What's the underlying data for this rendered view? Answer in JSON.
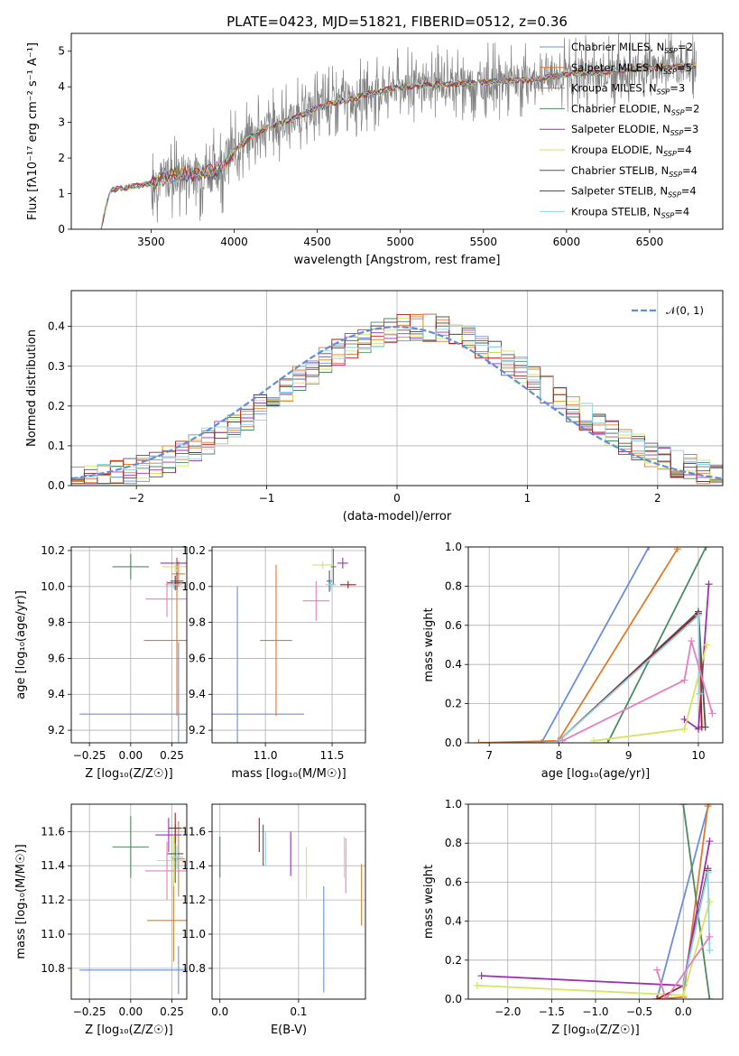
{
  "title": "PLATE=0423, MJD=51821, FIBERID=0512, z=0.36",
  "colors": {
    "Chabrier MILES": "#6a8fd9",
    "Salpeter MILES": "#e07b2a",
    "Kroupa MILES": "#e07b2a",
    "Chabrier ELODIE": "#4f8a5f",
    "Salpeter ELODIE": "#9b30b0",
    "Kroupa ELODIE": "#d2e660",
    "Chabrier STELIB": "#555555",
    "Salpeter STELIB": "#b01818",
    "Kroupa STELIB": "#8fd3e6",
    "Extra pink": "#e57fbd",
    "data": "#808080",
    "gaussian": "#5e8fd9"
  },
  "chart_data": [
    {
      "id": "spectrum",
      "type": "line",
      "title": "PLATE=0423, MJD=51821, FIBERID=0512, z=0.36",
      "xlabel": "wavelength [Angstrom, rest frame]",
      "ylabel": "Flux [f_λ 10^-17 erg cm^-2 s^-1 A^-1]",
      "xlim": [
        3020,
        6940
      ],
      "ylim": [
        0,
        5.5
      ],
      "xticks": [
        3500,
        4000,
        4500,
        5000,
        5500,
        6000,
        6500
      ],
      "yticks": [
        0,
        1,
        2,
        3,
        4,
        5
      ],
      "legend_position": "top-right",
      "legend": [
        {
          "label": "Chabrier MILES, N",
          "sub": "SSP",
          "tail": "=2",
          "color": "#6a8fd9"
        },
        {
          "label": "Salpeter MILES, N",
          "sub": "SSP",
          "tail": "=5",
          "color": "#e07b2a"
        },
        {
          "label": "Kroupa MILES, N",
          "sub": "SSP",
          "tail": "=3",
          "color": "#e07b2a"
        },
        {
          "label": "Chabrier ELODIE, N",
          "sub": "SSP",
          "tail": "=2",
          "color": "#4f8a5f"
        },
        {
          "label": "Salpeter ELODIE, N",
          "sub": "SSP",
          "tail": "=3",
          "color": "#9b30b0"
        },
        {
          "label": "Kroupa ELODIE, N",
          "sub": "SSP",
          "tail": "=4",
          "color": "#d2e660"
        },
        {
          "label": "Chabrier STELIB, N",
          "sub": "SSP",
          "tail": "=4",
          "color": "#555555"
        },
        {
          "label": "Salpeter STELIB, N",
          "sub": "SSP",
          "tail": "=4",
          "color": "#b01818"
        },
        {
          "label": "Kroupa STELIB, N",
          "sub": "SSP",
          "tail": "=4",
          "color": "#8fd3e6"
        }
      ],
      "model_curve": {
        "x": [
          3200,
          3250,
          3300,
          3400,
          3500,
          3600,
          3700,
          3800,
          3900,
          4000,
          4100,
          4200,
          4300,
          4400,
          4500,
          4600,
          4700,
          4800,
          4900,
          5000,
          5200,
          5400,
          5600,
          5800,
          6000,
          6200,
          6400,
          6600,
          6780
        ],
        "y": [
          0.05,
          1.05,
          1.15,
          1.2,
          1.3,
          1.45,
          1.55,
          1.6,
          1.65,
          2.2,
          2.6,
          2.85,
          3.0,
          3.2,
          3.4,
          3.55,
          3.65,
          3.8,
          3.9,
          4.0,
          4.05,
          4.1,
          4.15,
          4.2,
          4.35,
          4.4,
          4.5,
          4.55,
          4.6
        ]
      },
      "noise_start": 3500
    },
    {
      "id": "residuals",
      "type": "line",
      "xlabel": "(data-model)/error",
      "ylabel": "Normed distribution",
      "xlim": [
        -2.5,
        2.5
      ],
      "ylim": [
        0,
        0.49
      ],
      "xticks": [
        -2,
        -1,
        0,
        1,
        2
      ],
      "yticks": [
        0.0,
        0.1,
        0.2,
        0.3,
        0.4
      ],
      "legend_position": "top-right",
      "legend": [
        {
          "label": "𝒩(0, 1)",
          "color": "#5e8fd9"
        }
      ],
      "bin_width": 0.1
    },
    {
      "id": "age-vs-Z",
      "type": "scatter",
      "xlabel": "Z [log₁₀(Z/Z☉)]",
      "ylabel": "age  [log₁₀(age/yr)]",
      "xlim": [
        -0.36,
        0.34
      ],
      "ylim": [
        9.13,
        10.22
      ],
      "xticks": [
        -0.25,
        0.0,
        0.25
      ],
      "xticklabels": [
        "−0.25",
        "0.00",
        "0.25"
      ],
      "yticks": [
        9.2,
        9.4,
        9.6,
        9.8,
        10.0,
        10.2
      ],
      "points": [
        {
          "model": "Chabrier MILES",
          "x": 0.29,
          "y": 9.29,
          "xerr": 0.6,
          "yerr": 0.4
        },
        {
          "model": "Salpeter MILES",
          "x": 0.28,
          "y": 9.7,
          "xerr": 0.2,
          "yerr": 0.42
        },
        {
          "model": "Kroupa MILES",
          "x": 0.29,
          "y": 10.07,
          "xerr": 0.04,
          "yerr": 0.07
        },
        {
          "model": "Chabrier ELODIE",
          "x": 0.0,
          "y": 10.11,
          "xerr": 0.11,
          "yerr": 0.07
        },
        {
          "model": "Salpeter ELODIE",
          "x": 0.28,
          "y": 10.13,
          "xerr": 0.1,
          "yerr": 0.03
        },
        {
          "model": "Kroupa ELODIE",
          "x": 0.27,
          "y": 10.11,
          "xerr": 0.08,
          "yerr": 0.03
        },
        {
          "model": "Chabrier STELIB",
          "x": 0.28,
          "y": 10.03,
          "xerr": 0.04,
          "yerr": 0.05
        },
        {
          "model": "Salpeter STELIB",
          "x": 0.27,
          "y": 10.02,
          "xerr": 0.05,
          "yerr": 0.04
        },
        {
          "model": "Kroupa STELIB",
          "x": 0.26,
          "y": 10.01,
          "xerr": 0.05,
          "yerr": 0.02
        },
        {
          "model": "Extra pink",
          "x": 0.22,
          "y": 9.93,
          "xerr": 0.13,
          "yerr": 0.1
        }
      ]
    },
    {
      "id": "age-vs-mass",
      "type": "scatter",
      "xlabel": "mass [log₁₀(M/M☉)]",
      "ylabel": "",
      "xlim": [
        10.6,
        11.75
      ],
      "ylim": [
        9.13,
        10.22
      ],
      "xticks": [
        11.0,
        11.5
      ],
      "xticklabels": [
        "11.0",
        "11.5"
      ],
      "yticks": [
        9.2,
        9.4,
        9.6,
        9.8,
        10.0,
        10.2
      ],
      "points": [
        {
          "model": "Chabrier MILES",
          "x": 10.79,
          "y": 9.29,
          "xerr": 0.5,
          "yerr": 0.71
        },
        {
          "model": "Salpeter MILES",
          "x": 11.08,
          "y": 9.7,
          "xerr": 0.12,
          "yerr": 0.42
        },
        {
          "model": "Chabrier ELODIE",
          "x": 11.51,
          "y": 10.11,
          "xerr": 0.02,
          "yerr": 0.1
        },
        {
          "model": "Salpeter ELODIE",
          "x": 11.58,
          "y": 10.13,
          "xerr": 0.04,
          "yerr": 0.03
        },
        {
          "model": "Kroupa ELODIE",
          "x": 11.43,
          "y": 10.12,
          "xerr": 0.08,
          "yerr": 0.02
        },
        {
          "model": "Chabrier STELIB",
          "x": 11.48,
          "y": 10.03,
          "xerr": 0.02,
          "yerr": 0.06
        },
        {
          "model": "Salpeter STELIB",
          "x": 11.62,
          "y": 10.01,
          "xerr": 0.06,
          "yerr": 0.02
        },
        {
          "model": "Kroupa STELIB",
          "x": 11.49,
          "y": 10.01,
          "xerr": 0.04,
          "yerr": 0.03
        },
        {
          "model": "Extra pink",
          "x": 11.38,
          "y": 9.92,
          "xerr": 0.1,
          "yerr": 0.11
        }
      ]
    },
    {
      "id": "massweight-vs-age",
      "type": "line",
      "xlabel": "age  [log₁₀(age/yr)]",
      "ylabel": "mass weight",
      "xlim": [
        6.7,
        10.35
      ],
      "ylim": [
        0,
        1.0
      ],
      "xticks": [
        7,
        8,
        9,
        10
      ],
      "yticks": [
        0.0,
        0.2,
        0.4,
        0.6,
        0.8,
        1.0
      ],
      "series": [
        {
          "model": "Chabrier MILES",
          "x": [
            7.75,
            9.29
          ],
          "y": [
            0.0,
            1.0
          ]
        },
        {
          "model": "Salpeter MILES",
          "x": [
            6.85,
            7.99,
            9.7
          ],
          "y": [
            0.0,
            0.01,
            0.99
          ]
        },
        {
          "model": "Chabrier ELODIE",
          "x": [
            8.7,
            10.11
          ],
          "y": [
            0.0,
            1.0
          ]
        },
        {
          "model": "Salpeter ELODIE",
          "x": [
            9.8,
            10.0,
            10.15
          ],
          "y": [
            0.12,
            0.07,
            0.81
          ]
        },
        {
          "model": "Kroupa ELODIE",
          "x": [
            8.5,
            9.8,
            10.12
          ],
          "y": [
            0.01,
            0.07,
            0.5
          ]
        },
        {
          "model": "Chabrier STELIB",
          "x": [
            8.0,
            10.0,
            10.1
          ],
          "y": [
            0.01,
            0.67,
            0.08
          ]
        },
        {
          "model": "Salpeter STELIB",
          "x": [
            8.0,
            10.0,
            10.05
          ],
          "y": [
            0.01,
            0.66,
            0.08
          ]
        },
        {
          "model": "Kroupa STELIB",
          "x": [
            8.0,
            10.0,
            10.02
          ],
          "y": [
            0.01,
            0.65,
            0.25
          ]
        },
        {
          "model": "Extra pink",
          "x": [
            8.05,
            9.8,
            9.9,
            10.2
          ],
          "y": [
            0.01,
            0.32,
            0.52,
            0.15
          ]
        }
      ]
    },
    {
      "id": "mass-vs-Z",
      "type": "scatter",
      "xlabel": "Z [log₁₀(Z/Z☉)]",
      "ylabel": "mass [log₁₀(M/M☉)]",
      "xlim": [
        -0.36,
        0.34
      ],
      "ylim": [
        10.62,
        11.76
      ],
      "xticks": [
        -0.25,
        0.0,
        0.25
      ],
      "xticklabels": [
        "−0.25",
        "0.00",
        "0.25"
      ],
      "yticks": [
        10.8,
        11.0,
        11.2,
        11.4,
        11.6
      ],
      "points": [
        {
          "model": "Chabrier MILES",
          "x": 0.29,
          "y": 10.79,
          "xerr": 0.6,
          "yerr": 0.14
        },
        {
          "model": "Salpeter MILES",
          "x": 0.26,
          "y": 11.08,
          "xerr": 0.16,
          "yerr": 0.24
        },
        {
          "model": "Kroupa MILES",
          "x": 0.29,
          "y": 11.44,
          "xerr": 0.04,
          "yerr": 0.22
        },
        {
          "model": "Chabrier ELODIE",
          "x": 0.0,
          "y": 11.51,
          "xerr": 0.11,
          "yerr": 0.18
        },
        {
          "model": "Salpeter ELODIE",
          "x": 0.23,
          "y": 11.58,
          "xerr": 0.08,
          "yerr": 0.1
        },
        {
          "model": "Kroupa ELODIE",
          "x": 0.26,
          "y": 11.43,
          "xerr": 0.1,
          "yerr": 0.15
        },
        {
          "model": "Chabrier STELIB",
          "x": 0.27,
          "y": 11.47,
          "xerr": 0.05,
          "yerr": 0.17
        },
        {
          "model": "Salpeter STELIB",
          "x": 0.27,
          "y": 11.62,
          "xerr": 0.04,
          "yerr": 0.09
        },
        {
          "model": "Kroupa STELIB",
          "x": 0.28,
          "y": 11.45,
          "xerr": 0.04,
          "yerr": 0.07
        },
        {
          "model": "Extra pink",
          "x": 0.22,
          "y": 11.37,
          "xerr": 0.13,
          "yerr": 0.17
        }
      ]
    },
    {
      "id": "mass-vs-EBV",
      "type": "scatter",
      "xlabel": "E(B-V)",
      "ylabel": "",
      "xlim": [
        -0.01,
        0.185
      ],
      "ylim": [
        10.62,
        11.76
      ],
      "xticks": [
        0.0,
        0.1
      ],
      "xticklabels": [
        "0.0",
        "0.1"
      ],
      "yticks": [
        10.8,
        11.0,
        11.2,
        11.4,
        11.6
      ],
      "points": [
        {
          "model": "Chabrier ELODIE",
          "x": 0.0,
          "y": 11.45,
          "xerr": 0,
          "yerr": 0.12
        },
        {
          "model": "Salpeter STELIB",
          "x": 0.05,
          "y": 11.58,
          "xerr": 0,
          "yerr": 0.1
        },
        {
          "model": "Chabrier STELIB",
          "x": 0.055,
          "y": 11.52,
          "xerr": 0,
          "yerr": 0.12
        },
        {
          "model": "Kroupa STELIB",
          "x": 0.058,
          "y": 11.5,
          "xerr": 0,
          "yerr": 0.1
        },
        {
          "model": "Salpeter ELODIE",
          "x": 0.09,
          "y": 11.47,
          "xerr": 0,
          "yerr": 0.13
        },
        {
          "model": "Kroupa ELODIE",
          "x": 0.11,
          "y": 11.36,
          "xerr": 0,
          "yerr": 0.15
        },
        {
          "model": "Chabrier MILES",
          "x": 0.132,
          "y": 10.97,
          "xerr": 0,
          "yerr": 0.31
        },
        {
          "model": "Kroupa ELODIE",
          "x": 0.158,
          "y": 11.45,
          "xerr": 0,
          "yerr": 0.12
        },
        {
          "model": "Extra pink",
          "x": 0.16,
          "y": 11.4,
          "xerr": 0,
          "yerr": 0.16
        },
        {
          "model": "Salpeter MILES",
          "x": 0.18,
          "y": 11.23,
          "xerr": 0,
          "yerr": 0.18
        }
      ]
    },
    {
      "id": "massweight-vs-Z",
      "type": "line",
      "xlabel": "Z [log₁₀(Z/Z☉)]",
      "ylabel": "mass weight",
      "xlim": [
        -2.45,
        0.45
      ],
      "ylim": [
        0,
        1.0
      ],
      "xticks": [
        -2.0,
        -1.5,
        -1.0,
        -0.5,
        0.0
      ],
      "xticklabels": [
        "−2.0",
        "−1.5",
        "−1.0",
        "−0.5",
        "0.0"
      ],
      "yticks": [
        0.0,
        0.2,
        0.4,
        0.6,
        0.8,
        1.0
      ],
      "series": [
        {
          "model": "Chabrier MILES",
          "x": [
            -0.3,
            0.29
          ],
          "y": [
            0.0,
            1.0
          ]
        },
        {
          "model": "Salpeter MILES",
          "x": [
            -0.3,
            0.0,
            0.28
          ],
          "y": [
            0.0,
            0.01,
            0.99
          ]
        },
        {
          "model": "Chabrier ELODIE",
          "x": [
            0.0,
            0.0,
            0.3
          ],
          "y": [
            1.0,
            1.0,
            0.0
          ]
        },
        {
          "model": "Salpeter ELODIE",
          "x": [
            -2.3,
            0.0,
            0.3
          ],
          "y": [
            0.12,
            0.07,
            0.81
          ]
        },
        {
          "model": "Kroupa ELODIE",
          "x": [
            -2.35,
            0.0,
            0.3
          ],
          "y": [
            0.07,
            0.02,
            0.5
          ]
        },
        {
          "model": "Chabrier STELIB",
          "x": [
            0.0,
            0.28
          ],
          "y": [
            0.07,
            0.67
          ]
        },
        {
          "model": "Salpeter STELIB",
          "x": [
            -0.3,
            0.0,
            0.28
          ],
          "y": [
            0.0,
            0.07,
            0.66
          ]
        },
        {
          "model": "Kroupa STELIB",
          "x": [
            0.0,
            0.28,
            0.3
          ],
          "y": [
            0.07,
            0.65,
            0.25
          ]
        },
        {
          "model": "Extra pink",
          "x": [
            -0.3,
            -0.2,
            0.3
          ],
          "y": [
            0.15,
            0.0,
            0.32
          ]
        }
      ]
    }
  ]
}
